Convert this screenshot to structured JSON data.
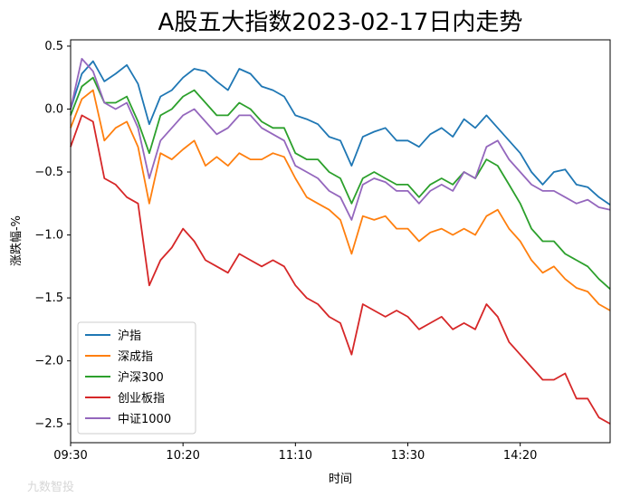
{
  "chart_data": {
    "type": "line",
    "title": "A股五大指数2023-02-17日内走势",
    "xlabel": "时间",
    "ylabel": "涨跌幅-%",
    "xlim": [
      "09:30",
      "15:00"
    ],
    "ylim": [
      -2.65,
      0.55
    ],
    "x_ticks": [
      "09:30",
      "10:20",
      "11:10",
      "13:30",
      "14:20"
    ],
    "y_ticks": [
      0.5,
      0.0,
      -0.5,
      -1.0,
      -1.5,
      -2.0,
      -2.5
    ],
    "y_tick_labels": [
      "0.5",
      "0.0",
      "−0.5",
      "−1.0",
      "−1.5",
      "−2.0",
      "−2.5"
    ],
    "legend_position": "lower-left",
    "grid": false,
    "x_times": [
      "09:30",
      "09:35",
      "09:40",
      "09:45",
      "09:50",
      "09:55",
      "10:00",
      "10:05",
      "10:10",
      "10:15",
      "10:20",
      "10:25",
      "10:30",
      "10:35",
      "10:40",
      "10:45",
      "10:50",
      "10:55",
      "11:00",
      "11:05",
      "11:10",
      "11:15",
      "11:20",
      "11:25",
      "11:30",
      "13:05",
      "13:10",
      "13:15",
      "13:20",
      "13:25",
      "13:30",
      "13:35",
      "13:40",
      "13:45",
      "13:50",
      "13:55",
      "14:00",
      "14:05",
      "14:10",
      "14:15",
      "14:20",
      "14:25",
      "14:30",
      "14:35",
      "14:40",
      "14:45",
      "14:50",
      "14:55",
      "15:00"
    ],
    "series": [
      {
        "name": "沪指",
        "color": "#1f77b4",
        "values": [
          0.0,
          0.28,
          0.38,
          0.22,
          0.28,
          0.35,
          0.2,
          -0.12,
          0.1,
          0.15,
          0.25,
          0.32,
          0.3,
          0.22,
          0.15,
          0.32,
          0.28,
          0.18,
          0.15,
          0.1,
          -0.05,
          -0.08,
          -0.12,
          -0.22,
          -0.25,
          -0.45,
          -0.22,
          -0.18,
          -0.15,
          -0.25,
          -0.25,
          -0.3,
          -0.2,
          -0.15,
          -0.22,
          -0.08,
          -0.15,
          -0.05,
          -0.15,
          -0.25,
          -0.35,
          -0.5,
          -0.6,
          -0.5,
          -0.48,
          -0.6,
          -0.62,
          -0.7,
          -0.76
        ]
      },
      {
        "name": "深成指",
        "color": "#ff7f0e",
        "values": [
          -0.15,
          0.08,
          0.15,
          -0.25,
          -0.15,
          -0.1,
          -0.3,
          -0.75,
          -0.35,
          -0.4,
          -0.32,
          -0.25,
          -0.45,
          -0.38,
          -0.45,
          -0.35,
          -0.4,
          -0.4,
          -0.35,
          -0.38,
          -0.55,
          -0.7,
          -0.75,
          -0.8,
          -0.88,
          -1.15,
          -0.85,
          -0.88,
          -0.85,
          -0.95,
          -0.95,
          -1.05,
          -0.98,
          -0.95,
          -1.0,
          -0.95,
          -1.0,
          -0.85,
          -0.8,
          -0.95,
          -1.05,
          -1.2,
          -1.3,
          -1.25,
          -1.35,
          -1.42,
          -1.45,
          -1.55,
          -1.6
        ]
      },
      {
        "name": "沪深300",
        "color": "#2ca02c",
        "values": [
          -0.05,
          0.18,
          0.25,
          0.05,
          0.05,
          0.1,
          -0.1,
          -0.35,
          -0.05,
          0.0,
          0.1,
          0.15,
          0.05,
          -0.05,
          -0.05,
          0.05,
          0.0,
          -0.1,
          -0.15,
          -0.15,
          -0.35,
          -0.4,
          -0.4,
          -0.5,
          -0.55,
          -0.75,
          -0.55,
          -0.5,
          -0.55,
          -0.6,
          -0.6,
          -0.7,
          -0.6,
          -0.55,
          -0.6,
          -0.5,
          -0.55,
          -0.4,
          -0.45,
          -0.6,
          -0.75,
          -0.95,
          -1.05,
          -1.05,
          -1.15,
          -1.2,
          -1.25,
          -1.35,
          -1.43
        ]
      },
      {
        "name": "创业板指",
        "color": "#d62728",
        "values": [
          -0.3,
          -0.05,
          -0.1,
          -0.55,
          -0.6,
          -0.7,
          -0.75,
          -1.4,
          -1.2,
          -1.1,
          -0.95,
          -1.05,
          -1.2,
          -1.25,
          -1.3,
          -1.15,
          -1.2,
          -1.25,
          -1.2,
          -1.25,
          -1.4,
          -1.5,
          -1.55,
          -1.65,
          -1.7,
          -1.95,
          -1.55,
          -1.6,
          -1.65,
          -1.6,
          -1.65,
          -1.75,
          -1.7,
          -1.65,
          -1.75,
          -1.7,
          -1.75,
          -1.55,
          -1.65,
          -1.85,
          -1.95,
          -2.05,
          -2.15,
          -2.15,
          -2.1,
          -2.3,
          -2.3,
          -2.45,
          -2.5
        ]
      },
      {
        "name": "中证1000",
        "color": "#9467bd",
        "values": [
          0.0,
          0.4,
          0.3,
          0.05,
          0.0,
          0.05,
          -0.15,
          -0.55,
          -0.25,
          -0.15,
          -0.05,
          0.0,
          -0.1,
          -0.2,
          -0.15,
          -0.05,
          -0.05,
          -0.15,
          -0.2,
          -0.25,
          -0.45,
          -0.5,
          -0.55,
          -0.65,
          -0.7,
          -0.88,
          -0.6,
          -0.55,
          -0.58,
          -0.65,
          -0.65,
          -0.75,
          -0.65,
          -0.6,
          -0.65,
          -0.5,
          -0.55,
          -0.3,
          -0.25,
          -0.4,
          -0.5,
          -0.6,
          -0.65,
          -0.65,
          -0.7,
          -0.75,
          -0.72,
          -0.78,
          -0.8
        ]
      }
    ]
  },
  "watermark": "九数智投"
}
